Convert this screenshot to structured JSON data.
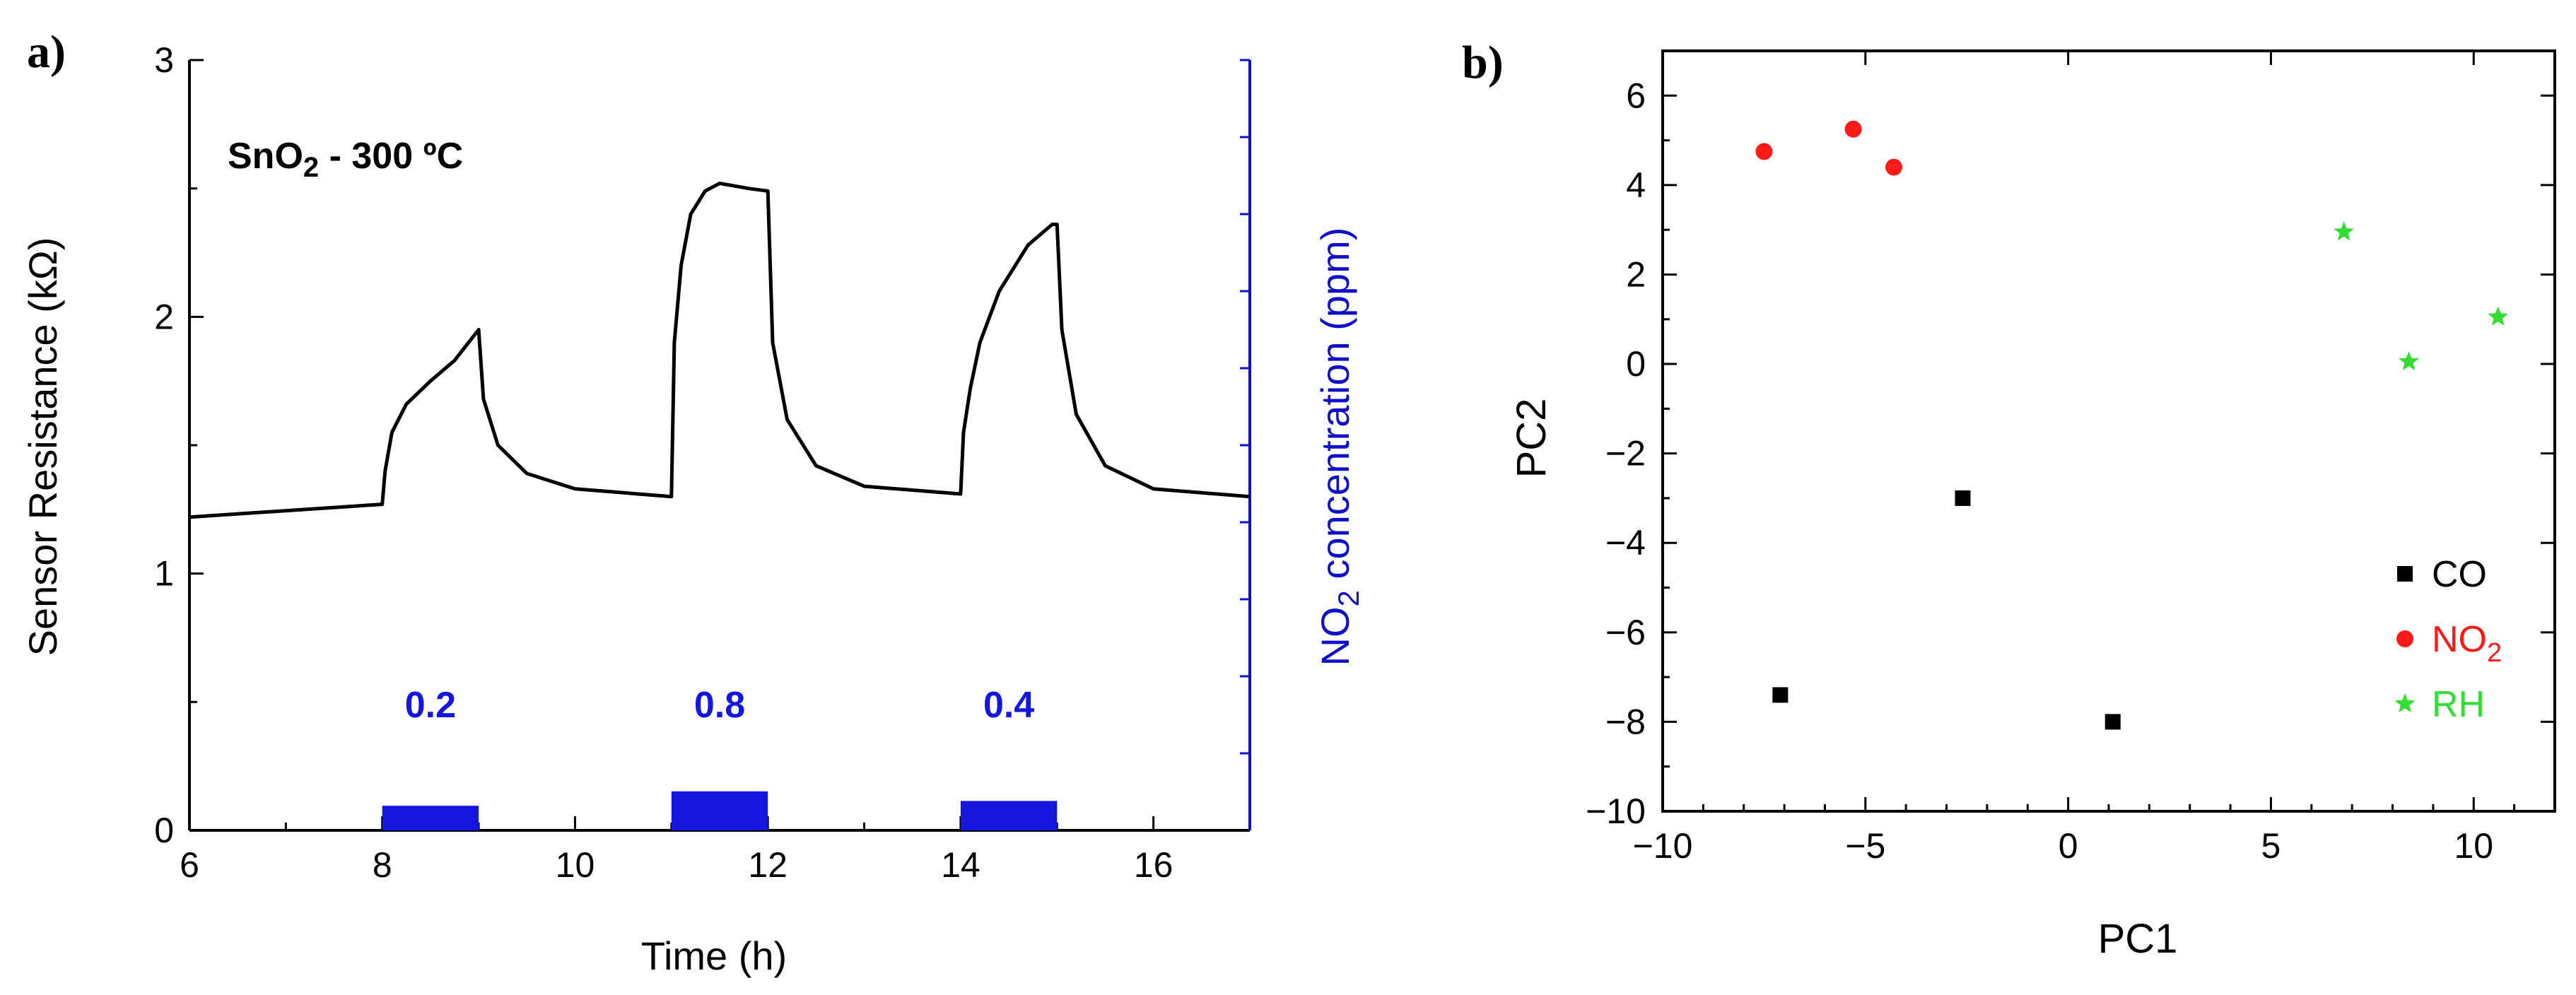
{
  "colors": {
    "axis": "#000000",
    "right_axis": "#1010c8",
    "resistance_line": "#000000",
    "pulse_fill": "#1515e0",
    "co": "#000000",
    "no2": "#ff1a1a",
    "rh": "#33dd33"
  },
  "chart_data": [
    {
      "panel_label": "a)",
      "type": "line",
      "title": "",
      "annotation": {
        "prefix": "SnO",
        "sub": "2",
        "suffix": " - 300 ºC"
      },
      "xlabel": "Time (h)",
      "ylabel": "Sensor Resistance (kΩ)",
      "y2label": {
        "prefix": "NO",
        "sub": "2",
        "suffix": " concentration (ppm)"
      },
      "xlim": [
        6,
        17
      ],
      "ylim": [
        0,
        3
      ],
      "xticks": [
        6,
        8,
        10,
        12,
        14,
        16
      ],
      "yticks": [
        0,
        1,
        2,
        3
      ],
      "series": [
        {
          "name": "Sensor Resistance",
          "x": [
            6,
            8,
            8.03,
            8.1,
            8.25,
            8.5,
            8.75,
            9,
            9.05,
            9.2,
            9.5,
            10,
            11,
            11.03,
            11.1,
            11.2,
            11.35,
            11.5,
            11.8,
            12,
            12.05,
            12.2,
            12.5,
            13,
            14,
            14.03,
            14.1,
            14.2,
            14.4,
            14.7,
            14.95,
            15,
            15.05,
            15.2,
            15.5,
            16,
            17
          ],
          "values": [
            1.22,
            1.27,
            1.4,
            1.55,
            1.66,
            1.75,
            1.83,
            1.95,
            1.68,
            1.5,
            1.39,
            1.33,
            1.3,
            1.9,
            2.2,
            2.4,
            2.49,
            2.52,
            2.5,
            2.49,
            1.9,
            1.6,
            1.42,
            1.34,
            1.31,
            1.55,
            1.72,
            1.9,
            2.1,
            2.28,
            2.36,
            2.36,
            1.95,
            1.62,
            1.42,
            1.33,
            1.3
          ]
        }
      ],
      "pulses": [
        {
          "label": "0.2",
          "start": 8,
          "end": 9,
          "level": 0.2
        },
        {
          "label": "0.8",
          "start": 11,
          "end": 12,
          "level": 0.8
        },
        {
          "label": "0.4",
          "start": 14,
          "end": 15,
          "level": 0.4
        }
      ]
    },
    {
      "panel_label": "b)",
      "type": "scatter",
      "title": "",
      "xlabel": "PC1",
      "ylabel": "PC2",
      "xlim": [
        -10,
        12
      ],
      "ylim": [
        -10,
        7
      ],
      "xticks": [
        -10,
        -5,
        0,
        5,
        10
      ],
      "yticks": [
        -10,
        -8,
        -6,
        -4,
        -2,
        0,
        2,
        4,
        6
      ],
      "legend_position": "bottom-right",
      "series": [
        {
          "name": "CO",
          "label": {
            "prefix": "CO",
            "sub": ""
          },
          "marker": "square",
          "points": [
            [
              -2.6,
              -3.0
            ],
            [
              -7.1,
              -7.4
            ],
            [
              1.1,
              -8.0
            ]
          ]
        },
        {
          "name": "NO2",
          "label": {
            "prefix": "NO",
            "sub": "2"
          },
          "marker": "circle",
          "points": [
            [
              -7.5,
              4.75
            ],
            [
              -5.3,
              5.25
            ],
            [
              -4.3,
              4.4
            ]
          ]
        },
        {
          "name": "RH",
          "label": {
            "prefix": "RH",
            "sub": ""
          },
          "marker": "star",
          "points": [
            [
              6.8,
              2.95
            ],
            [
              8.4,
              0.05
            ],
            [
              10.6,
              1.05
            ]
          ]
        }
      ]
    }
  ]
}
